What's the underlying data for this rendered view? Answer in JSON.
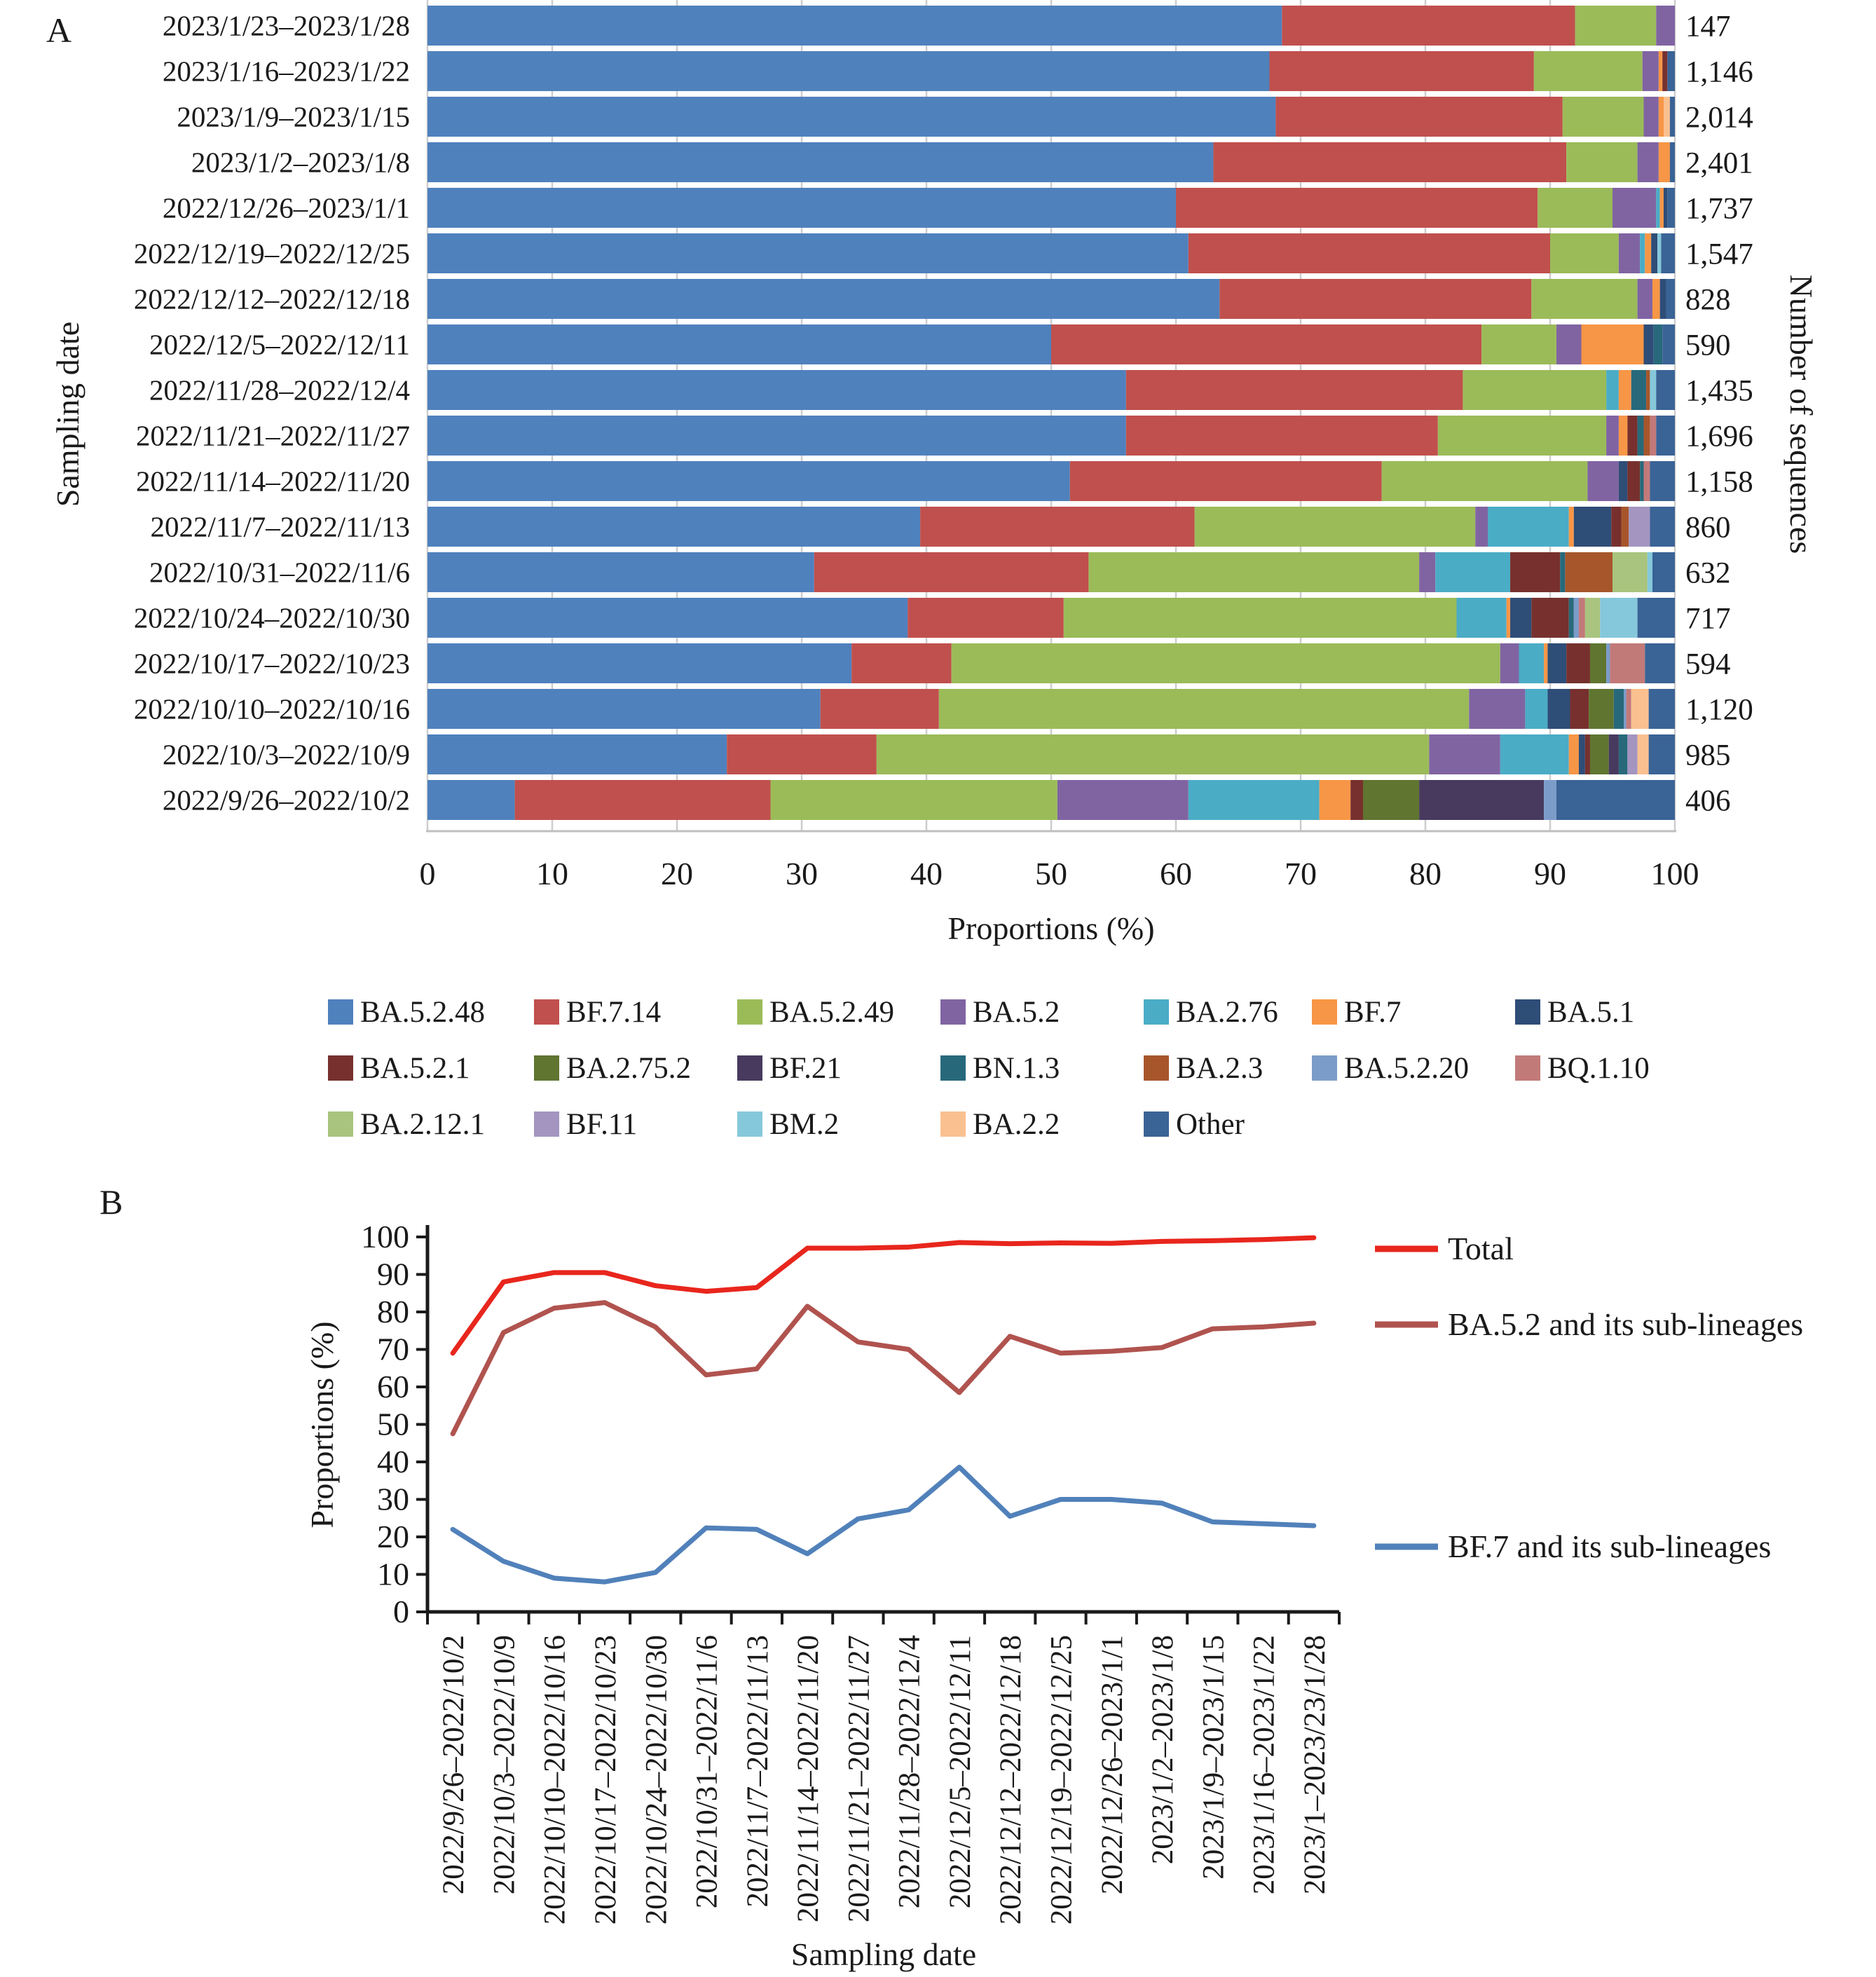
{
  "panel_a": {
    "label": "A",
    "ylabel_left": "Sampling date",
    "ylabel_right": "Number of sequences",
    "xlabel": "Proportions (%)"
  },
  "panel_b": {
    "label": "B",
    "ylabel": "Proportions (%)",
    "xlabel": "Sampling date"
  },
  "colors": {
    "BA.5.2.48": "#4F81BD",
    "BF.7.14": "#C0504D",
    "BA.5.2.49": "#9BBB59",
    "BA.5.2": "#8064A2",
    "BA.2.76": "#4BACC6",
    "BF.7": "#F79646",
    "BA.5.1": "#2E4D77",
    "BA.5.2.1": "#77302D",
    "BA.2.75.2": "#5F7530",
    "BF.21": "#473A5E",
    "BN.1.3": "#27697B",
    "BA.2.3": "#A7562C",
    "BA.5.2.20": "#7B9CC9",
    "BQ.1.10": "#C27A79",
    "BA.2.12.1": "#A8C47E",
    "BF.11": "#A395C0",
    "BM.2": "#86C8DB",
    "BA.2.2": "#FAC090",
    "Other": "#3A6396",
    "total_line": "#E8261D",
    "ba52_line": "#B0534F",
    "bf7_line": "#5181BA",
    "grid": "#CDCDCD",
    "axis": "#1A1A1A"
  },
  "chart_data": [
    {
      "type": "bar",
      "panel": "A",
      "orientation": "horizontal-stacked",
      "xlabel": "Proportions (%)",
      "ylabel_left": "Sampling date",
      "ylabel_right": "Number of sequences",
      "xlim": [
        0,
        100
      ],
      "xticks": [
        "0",
        "10",
        "20",
        "30",
        "40",
        "50",
        "60",
        "70",
        "80",
        "90",
        "100"
      ],
      "grid": true,
      "lineages": [
        "BA.5.2.48",
        "BF.7.14",
        "BA.5.2.49",
        "BA.5.2",
        "BA.2.76",
        "BF.7",
        "BA.5.1",
        "BA.5.2.1",
        "BA.2.75.2",
        "BF.21",
        "BN.1.3",
        "BA.2.3",
        "BA.5.2.20",
        "BQ.1.10",
        "BA.2.12.1",
        "BF.11",
        "BM.2",
        "BA.2.2",
        "Other"
      ],
      "rows": [
        {
          "date": "2023/1/23–2023/1/28",
          "n": "147",
          "values": [
            68.5,
            23.5,
            6.5,
            1.5,
            0,
            0,
            0,
            0,
            0,
            0,
            0,
            0,
            0,
            0,
            0,
            0,
            0,
            0,
            0
          ]
        },
        {
          "date": "2023/1/16–2023/1/22",
          "n": "1,146",
          "values": [
            67.5,
            21.2,
            8.7,
            1.3,
            0,
            0.3,
            0,
            0.4,
            0,
            0,
            0,
            0,
            0,
            0,
            0,
            0,
            0,
            0,
            0.6
          ]
        },
        {
          "date": "2023/1/9–2023/1/15",
          "n": "2,014",
          "values": [
            68,
            23,
            6.5,
            1.2,
            0,
            0.4,
            0,
            0,
            0,
            0,
            0,
            0,
            0,
            0,
            0,
            0,
            0,
            0.5,
            0.4
          ]
        },
        {
          "date": "2023/1/2–2023/1/8",
          "n": "2,401",
          "values": [
            63,
            28.3,
            5.7,
            1.7,
            0,
            0.9,
            0,
            0,
            0,
            0,
            0,
            0,
            0,
            0,
            0,
            0,
            0,
            0,
            0.4
          ]
        },
        {
          "date": "2022/12/26–2023/1/1",
          "n": "1,737",
          "values": [
            60,
            29,
            6,
            3.5,
            0.3,
            0.3,
            0.3,
            0,
            0,
            0,
            0,
            0,
            0,
            0,
            0,
            0,
            0,
            0,
            0.6
          ]
        },
        {
          "date": "2022/12/19–2022/12/25",
          "n": "1,547",
          "values": [
            61,
            29,
            5.5,
            1.7,
            0.4,
            0.5,
            0.5,
            0,
            0,
            0,
            0,
            0,
            0,
            0,
            0,
            0,
            0.3,
            0,
            1.1
          ]
        },
        {
          "date": "2022/12/12–2022/12/18",
          "n": "828",
          "values": [
            63.5,
            25,
            8.5,
            1.2,
            0,
            0.6,
            0.5,
            0,
            0,
            0,
            0,
            0,
            0,
            0,
            0,
            0,
            0,
            0,
            0.7
          ]
        },
        {
          "date": "2022/12/5–2022/12/11",
          "n": "590",
          "values": [
            50,
            34.5,
            6,
            2,
            0,
            5,
            0.8,
            0,
            0,
            0,
            0.7,
            0,
            0,
            0,
            0,
            0,
            0,
            0,
            1
          ]
        },
        {
          "date": "2022/11/28–2022/12/4",
          "n": "1,435",
          "values": [
            56,
            27,
            11.5,
            0,
            1,
            1,
            0,
            0,
            0,
            0,
            1.2,
            0.3,
            0,
            0,
            0,
            0,
            0.5,
            0,
            1.5
          ]
        },
        {
          "date": "2022/11/21–2022/11/27",
          "n": "1,696",
          "values": [
            56,
            25,
            13.5,
            1,
            0,
            0.7,
            0,
            0.8,
            0,
            0,
            0.5,
            0.5,
            0,
            0.5,
            0,
            0,
            0,
            0,
            1.5
          ]
        },
        {
          "date": "2022/11/14–2022/11/20",
          "n": "1,158",
          "values": [
            51.5,
            25,
            16.5,
            2.5,
            0,
            0,
            0.7,
            1,
            0,
            0,
            0.3,
            0,
            0,
            0.5,
            0,
            0,
            0,
            0,
            2
          ]
        },
        {
          "date": "2022/11/7–2022/11/13",
          "n": "860",
          "values": [
            39.5,
            22,
            22.5,
            1,
            6.5,
            0.4,
            3,
            0.8,
            0,
            0,
            0,
            0.6,
            0,
            0,
            0,
            1.7,
            0,
            0,
            2
          ]
        },
        {
          "date": "2022/10/31–2022/11/6",
          "n": "632",
          "values": [
            31,
            22,
            26.5,
            1.3,
            6,
            0,
            0,
            4,
            0,
            0,
            0.4,
            3.8,
            0,
            0,
            2.8,
            0,
            0.4,
            0,
            1.8
          ]
        },
        {
          "date": "2022/10/24–2022/10/30",
          "n": "717",
          "values": [
            38.5,
            12.5,
            31.5,
            0,
            4,
            0.3,
            1.7,
            3,
            0,
            0,
            0.4,
            0,
            0.4,
            0.5,
            1.2,
            0,
            3,
            0,
            3
          ]
        },
        {
          "date": "2022/10/17–2022/10/23",
          "n": "594",
          "values": [
            34,
            8,
            44,
            1.5,
            2,
            0.3,
            1.5,
            1.9,
            1.3,
            0,
            0,
            0,
            0.3,
            2.8,
            0,
            0,
            0,
            0,
            2.4
          ]
        },
        {
          "date": "2022/10/10–2022/10/16",
          "n": "1,120",
          "values": [
            31.5,
            9.5,
            42.5,
            4.5,
            1.8,
            0,
            1.8,
            1.5,
            2,
            0,
            0.8,
            0,
            0.2,
            0.4,
            0,
            0,
            0,
            1.4,
            2.1
          ]
        },
        {
          "date": "2022/10/3–2022/10/9",
          "n": "985",
          "values": [
            24,
            12,
            44.3,
            5.7,
            5.5,
            0.8,
            0.5,
            0.4,
            1.5,
            0.8,
            0.7,
            0,
            0,
            0,
            0,
            0.8,
            0,
            0.9,
            2.1
          ]
        },
        {
          "date": "2022/9/26–2022/10/2",
          "n": "406",
          "values": [
            7,
            20.5,
            23,
            10.5,
            10.5,
            2.5,
            0,
            1,
            4.5,
            10,
            0,
            0,
            1,
            0,
            0,
            0,
            0,
            0,
            9.5
          ]
        }
      ]
    },
    {
      "type": "line",
      "panel": "B",
      "xlabel": "Sampling date",
      "ylabel": "Proportions (%)",
      "ylim": [
        0,
        100
      ],
      "yticks": [
        "0",
        "10",
        "20",
        "30",
        "40",
        "50",
        "60",
        "70",
        "80",
        "90",
        "100"
      ],
      "grid": false,
      "legend_position": "right",
      "categories": [
        "2022/9/26–2022/10/2",
        "2022/10/3–2022/10/9",
        "2022/10/10–2022/10/16",
        "2022/10/17–2022/10/23",
        "2022/10/24–2022/10/30",
        "2022/10/31–2022/11/6",
        "2022/11/7–2022/11/13",
        "2022/11/14–2022/11/20",
        "2022/11/21–2022/11/27",
        "2022/11/28–2022/12/4",
        "2022/12/5–2022/12/11",
        "2022/12/12–2022/12/18",
        "2022/12/19–2022/12/25",
        "2022/12/26–2023/1/1",
        "2023/1/2–2023/1/8",
        "2023/1/9–2023/1/15",
        "2023/1/16–2023/1/22",
        "2023/1–2023/23/1/28"
      ],
      "series": [
        {
          "name": "Total",
          "color_key": "total_line",
          "values": [
            69,
            88,
            90.5,
            90.5,
            87,
            85.5,
            86.5,
            97,
            97,
            97.3,
            98.5,
            98.2,
            98.4,
            98.3,
            98.8,
            99,
            99.3,
            99.8
          ]
        },
        {
          "name": "BA.5.2 and its sub-lineages",
          "color_key": "ba52_line",
          "values": [
            47.5,
            74.5,
            81,
            82.5,
            76,
            63.2,
            64.8,
            81.5,
            72,
            70,
            58.5,
            73.5,
            69,
            69.5,
            70.5,
            75.5,
            76,
            77
          ]
        },
        {
          "name": "BF.7 and its sub-lineages",
          "color_key": "bf7_line",
          "values": [
            22,
            13.5,
            9,
            8,
            10.5,
            22.4,
            22,
            15.5,
            24.8,
            27.2,
            38.6,
            25.5,
            30,
            30,
            29,
            24,
            23.5,
            23
          ]
        }
      ]
    }
  ],
  "legend": {
    "rows": [
      [
        "BA.5.2.48",
        "BF.7.14",
        "BA.5.2.49",
        "BA.5.2",
        "BA.2.76",
        "BF.7",
        "BA.5.1"
      ],
      [
        "BA.5.2.1",
        "BA.2.75.2",
        "BF.21",
        "BN.1.3",
        "BA.2.3",
        "BA.5.2.20",
        "BQ.1.10"
      ],
      [
        "BA.2.12.1",
        "BF.11",
        "BM.2",
        "BA.2.2",
        "Other"
      ]
    ]
  }
}
